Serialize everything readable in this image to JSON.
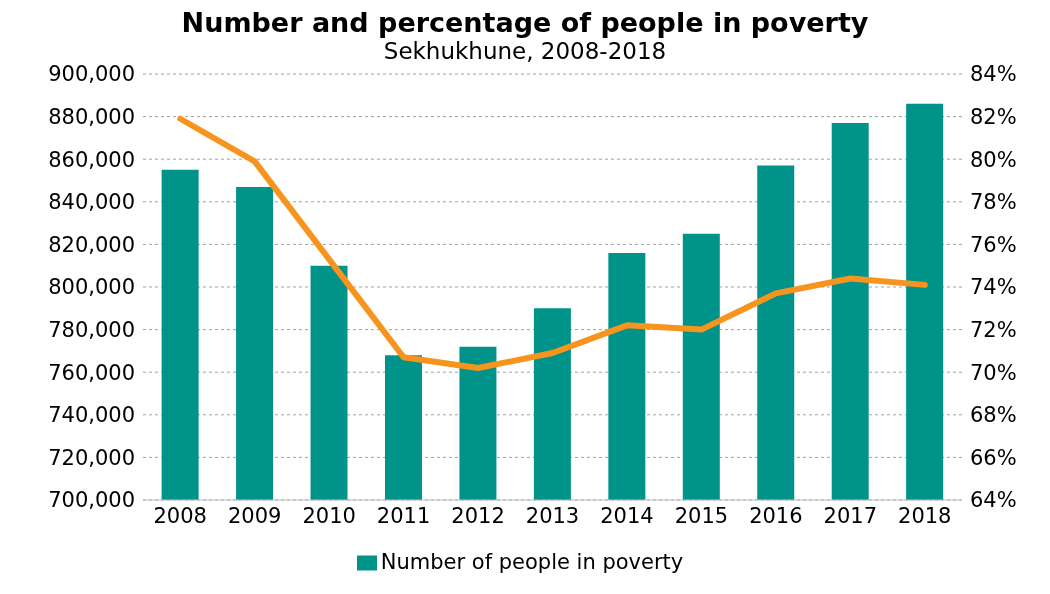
{
  "chart_data": {
    "type": "bar",
    "title": "Number and percentage of people in poverty",
    "subtitle": "Sekhukhune, 2008-2018",
    "categories": [
      "2008",
      "2009",
      "2010",
      "2011",
      "2012",
      "2013",
      "2014",
      "2015",
      "2016",
      "2017",
      "2018"
    ],
    "series": [
      {
        "name": "Number of people in poverty",
        "color": "#00938a",
        "values": [
          855000,
          847000,
          810000,
          768000,
          772000,
          790000,
          816000,
          825000,
          857000,
          877000,
          886000
        ]
      },
      {
        "type": "line",
        "axis": "y2",
        "color": "#f7941d",
        "marker": "none",
        "values": [
          81.9,
          79.9,
          75.3,
          70.7,
          70.2,
          70.9,
          72.2,
          72.0,
          73.7,
          74.4,
          74.1
        ]
      }
    ],
    "ylim": [
      700000,
      900000
    ],
    "yticks": [
      {
        "value": 700000,
        "label": "700,000"
      },
      {
        "value": 720000,
        "label": "720,000"
      },
      {
        "value": 740000,
        "label": "740,000"
      },
      {
        "value": 760000,
        "label": "760,000"
      },
      {
        "value": 780000,
        "label": "780,000"
      },
      {
        "value": 800000,
        "label": "800,000"
      },
      {
        "value": 820000,
        "label": "820,000"
      },
      {
        "value": 840000,
        "label": "840,000"
      },
      {
        "value": 860000,
        "label": "860,000"
      },
      {
        "value": 880000,
        "label": "880,000"
      },
      {
        "value": 900000,
        "label": "900,000"
      }
    ],
    "y2lim": [
      64,
      84
    ],
    "y2ticks": [
      {
        "value": 64,
        "label": "64%"
      },
      {
        "value": 66,
        "label": "66%"
      },
      {
        "value": 68,
        "label": "68%"
      },
      {
        "value": 70,
        "label": "70%"
      },
      {
        "value": 72,
        "label": "72%"
      },
      {
        "value": 74,
        "label": "74%"
      },
      {
        "value": 76,
        "label": "76%"
      },
      {
        "value": 78,
        "label": "78%"
      },
      {
        "value": 80,
        "label": "80%"
      },
      {
        "value": 82,
        "label": "82%"
      },
      {
        "value": 84,
        "label": "84%"
      }
    ],
    "grid": "y",
    "legend": "bottom"
  }
}
